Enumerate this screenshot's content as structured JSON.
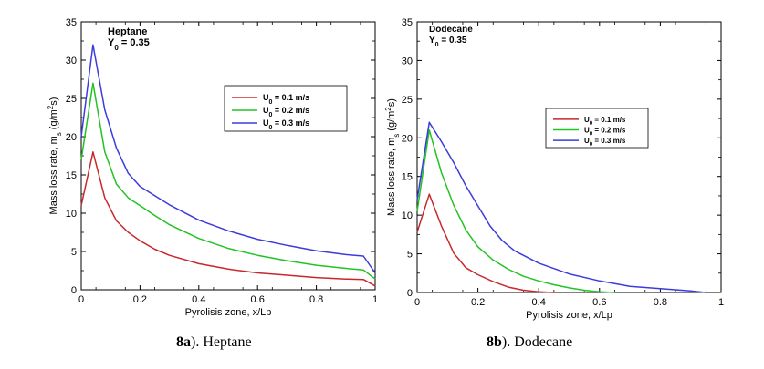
{
  "charts": [
    {
      "type": "line",
      "title": "Heptane",
      "subtitle_main": "Y",
      "subtitle_sub": "0",
      "subtitle_value": " = 0.35",
      "xlabel": "Pyrolisis zone, x/Lp",
      "ylabel_main": "Mass loss rate, m",
      "ylabel_sub": "s",
      "ylabel_unit": " (g/m",
      "ylabel_sup": "2",
      "ylabel_end": "s)",
      "xlim": [
        0,
        1
      ],
      "ylim": [
        0,
        35
      ],
      "xticks": [
        0,
        0.2,
        0.4,
        0.6,
        0.8,
        1
      ],
      "xtick_labels": [
        "0",
        "0.2",
        "0.4",
        "0.6",
        "0.8",
        "1"
      ],
      "yticks": [
        0,
        5,
        10,
        15,
        20,
        25,
        30,
        35
      ],
      "ytick_labels": [
        "0",
        "5",
        "10",
        "15",
        "20",
        "25",
        "30",
        "35"
      ],
      "series": [
        {
          "name_main": "U",
          "name_sub": "0",
          "name_value": " = 0.1 m/s",
          "color": "#c8282d",
          "x": [
            0,
            0.04,
            0.08,
            0.12,
            0.16,
            0.2,
            0.25,
            0.3,
            0.4,
            0.5,
            0.6,
            0.7,
            0.8,
            0.9,
            0.96,
            1.0
          ],
          "y": [
            11,
            18,
            12,
            9,
            7.5,
            6.4,
            5.3,
            4.5,
            3.4,
            2.7,
            2.2,
            1.9,
            1.6,
            1.4,
            1.35,
            0.5
          ]
        },
        {
          "name_main": "U",
          "name_sub": "0",
          "name_value": " = 0.2 m/s",
          "color": "#22c322",
          "x": [
            0,
            0.04,
            0.08,
            0.12,
            0.16,
            0.2,
            0.25,
            0.3,
            0.4,
            0.5,
            0.6,
            0.7,
            0.8,
            0.9,
            0.96,
            1.0
          ],
          "y": [
            17,
            27,
            18,
            13.8,
            12,
            11,
            9.7,
            8.5,
            6.7,
            5.4,
            4.5,
            3.8,
            3.2,
            2.8,
            2.6,
            1.4
          ]
        },
        {
          "name_main": "U",
          "name_sub": "0",
          "name_value": " = 0.3 m/s",
          "color": "#3c3cdc",
          "x": [
            0,
            0.04,
            0.08,
            0.12,
            0.16,
            0.2,
            0.25,
            0.3,
            0.4,
            0.5,
            0.6,
            0.7,
            0.8,
            0.9,
            0.96,
            1.0
          ],
          "y": [
            20,
            32,
            23.5,
            18.5,
            15.2,
            13.5,
            12.3,
            11.1,
            9.1,
            7.7,
            6.6,
            5.8,
            5.1,
            4.6,
            4.4,
            2.2
          ]
        }
      ]
    },
    {
      "type": "line",
      "title": "Dodecane",
      "subtitle_main": "Y",
      "subtitle_sub": "0",
      "subtitle_value": " = 0.35",
      "xlabel": "Pyrolisis zone, x/Lp",
      "ylabel_main": "Mass loss rate, m",
      "ylabel_sub": "s",
      "ylabel_unit": " (g/m",
      "ylabel_sup": "2",
      "ylabel_end": "s)",
      "xlim": [
        0,
        1
      ],
      "ylim": [
        0,
        35
      ],
      "xticks": [
        0,
        0.2,
        0.4,
        0.6,
        0.8,
        1
      ],
      "xtick_labels": [
        "0",
        "0.2",
        "0.4",
        "0.6",
        "0.8",
        "1"
      ],
      "yticks": [
        0,
        5,
        10,
        15,
        20,
        25,
        30,
        35
      ],
      "ytick_labels": [
        "0",
        "5",
        "10",
        "15",
        "20",
        "25",
        "30",
        "35"
      ],
      "series": [
        {
          "name_main": "U",
          "name_sub": "0",
          "name_value": " = 0.1 m/s",
          "color": "#c8282d",
          "x": [
            0,
            0.04,
            0.08,
            0.12,
            0.16,
            0.2,
            0.25,
            0.3,
            0.35,
            0.4,
            0.45
          ],
          "y": [
            7.8,
            12.7,
            8.6,
            5.1,
            3.2,
            2.3,
            1.4,
            0.7,
            0.3,
            0.1,
            0
          ]
        },
        {
          "name_main": "U",
          "name_sub": "0",
          "name_value": " = 0.2 m/s",
          "color": "#22c322",
          "x": [
            0,
            0.04,
            0.08,
            0.12,
            0.16,
            0.2,
            0.25,
            0.3,
            0.35,
            0.4,
            0.45,
            0.5,
            0.55,
            0.6,
            0.65
          ],
          "y": [
            10.5,
            21,
            15.5,
            11.3,
            8.1,
            5.9,
            4.2,
            3.0,
            2.1,
            1.5,
            1.0,
            0.6,
            0.3,
            0.1,
            0
          ]
        },
        {
          "name_main": "U",
          "name_sub": "0",
          "name_value": " = 0.3 m/s",
          "color": "#3c3cdc",
          "x": [
            0,
            0.04,
            0.08,
            0.12,
            0.16,
            0.2,
            0.24,
            0.28,
            0.32,
            0.4,
            0.5,
            0.6,
            0.7,
            0.8,
            0.9,
            0.95
          ],
          "y": [
            12,
            22,
            19.5,
            16.8,
            13.8,
            11.2,
            8.6,
            6.7,
            5.4,
            3.8,
            2.4,
            1.5,
            0.8,
            0.5,
            0.2,
            0
          ]
        }
      ]
    }
  ],
  "captions": [
    {
      "bold": "8a",
      "text": "). Heptane"
    },
    {
      "bold": "8b",
      "text": "). Dodecane"
    }
  ]
}
